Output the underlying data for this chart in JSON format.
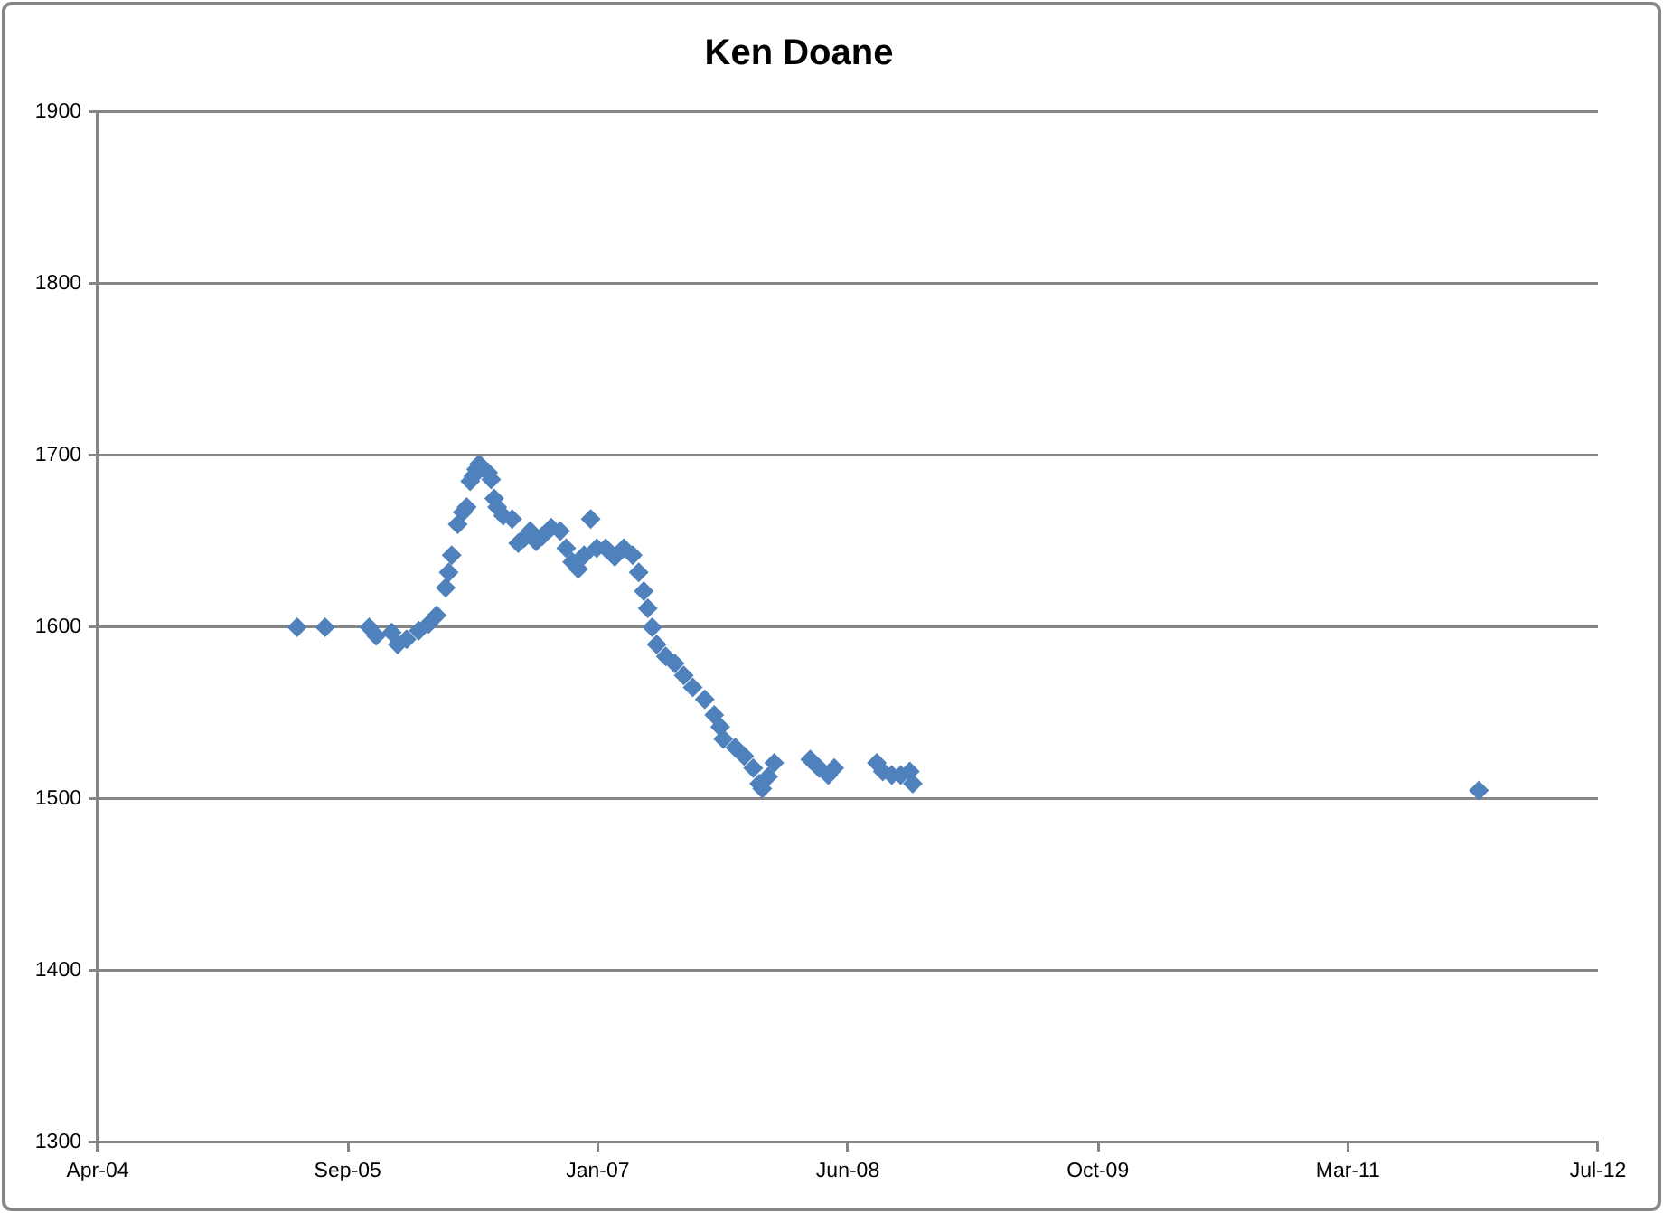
{
  "chart_data": {
    "type": "scatter",
    "title": "Ken Doane",
    "x": [
      "2005-05-31",
      "2005-07-26",
      "2005-10-22",
      "2005-11-05",
      "2005-12-06",
      "2005-12-18",
      "2006-01-05",
      "2006-01-29",
      "2006-02-18",
      "2006-03-06",
      "2006-03-24",
      "2006-03-30",
      "2006-04-05",
      "2006-04-17",
      "2006-04-27",
      "2006-05-05",
      "2006-05-12",
      "2006-05-18",
      "2006-05-24",
      "2006-05-30",
      "2006-06-17",
      "2006-06-23",
      "2006-06-29",
      "2006-07-05",
      "2006-07-17",
      "2006-08-04",
      "2006-08-16",
      "2006-08-28",
      "2006-09-09",
      "2006-09-21",
      "2006-10-03",
      "2006-10-21",
      "2006-11-08",
      "2006-11-20",
      "2006-12-02",
      "2006-12-14",
      "2006-12-26",
      "2007-01-08",
      "2007-01-20",
      "2007-02-07",
      "2007-02-25",
      "2007-03-15",
      "2007-04-02",
      "2007-04-14",
      "2007-04-24",
      "2007-05-02",
      "2007-05-11",
      "2007-05-20",
      "2007-06-07",
      "2007-06-25",
      "2007-07-13",
      "2007-07-31",
      "2007-08-24",
      "2007-09-12",
      "2007-09-24",
      "2007-09-30",
      "2007-10-24",
      "2007-11-11",
      "2007-11-29",
      "2007-12-11",
      "2007-12-17",
      "2007-12-29",
      "2008-01-10",
      "2008-03-22",
      "2008-04-09",
      "2008-04-27",
      "2008-05-09",
      "2008-08-02",
      "2008-08-14",
      "2008-09-01",
      "2008-09-19",
      "2008-10-07",
      "2008-10-13",
      "2011-11-19"
    ],
    "series": [
      {
        "color": "#4f81bd",
        "values": [
          1600,
          1600,
          1600,
          1595,
          1597,
          1590,
          1593,
          1598,
          1602,
          1607,
          1623,
          1632,
          1642,
          1660,
          1667,
          1670,
          1685,
          1688,
          1692,
          1695,
          1690,
          1686,
          1675,
          1670,
          1665,
          1663,
          1649,
          1652,
          1656,
          1650,
          1653,
          1658,
          1656,
          1646,
          1638,
          1634,
          1642,
          1663,
          1646,
          1646,
          1641,
          1646,
          1642,
          1632,
          1621,
          1611,
          1600,
          1590,
          1583,
          1579,
          1572,
          1565,
          1558,
          1549,
          1542,
          1535,
          1530,
          1525,
          1518,
          1509,
          1506,
          1513,
          1521,
          1523,
          1518,
          1514,
          1518,
          1521,
          1516,
          1514,
          1514,
          1516,
          1509,
          1505
        ]
      }
    ],
    "xlim": [
      "2004-04-27",
      "2012-07-14"
    ],
    "xticks": [
      {
        "value": "2004-04-27",
        "label": "Apr-04"
      },
      {
        "value": "2005-09-09",
        "label": "Sep-05"
      },
      {
        "value": "2007-01-22",
        "label": "Jan-07"
      },
      {
        "value": "2008-06-05",
        "label": "Jun-08"
      },
      {
        "value": "2009-10-18",
        "label": "Oct-09"
      },
      {
        "value": "2011-03-02",
        "label": "Mar-11"
      },
      {
        "value": "2012-07-14",
        "label": "Jul-12"
      }
    ],
    "ylim": [
      1300,
      1900
    ],
    "yticks": [
      1300,
      1400,
      1500,
      1600,
      1700,
      1800,
      1900
    ],
    "grid": "y",
    "marker": "diamond"
  }
}
